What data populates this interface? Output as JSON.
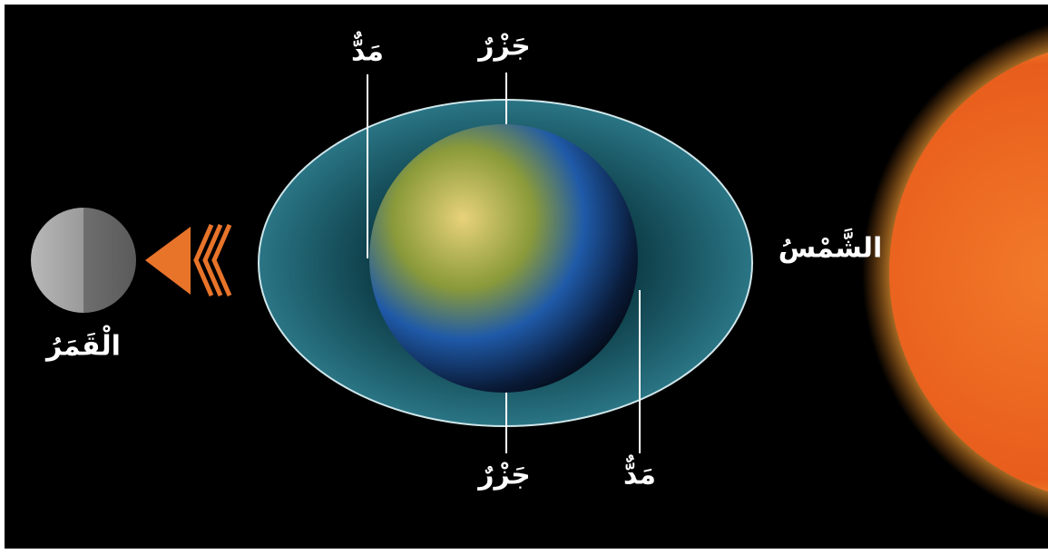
{
  "labels": [
    {
      "id": "moon",
      "text": "الْقَمَرُ"
    },
    {
      "id": "sun",
      "text": "الشَّمْسُ"
    },
    {
      "id": "high-tide-near",
      "text": "مَدٌّ"
    },
    {
      "id": "low-tide-top",
      "text": "جَزْرٌ"
    },
    {
      "id": "low-tide-bottom",
      "text": "جَزْرٌ"
    },
    {
      "id": "high-tide-far",
      "text": "مَدٌّ"
    }
  ]
}
